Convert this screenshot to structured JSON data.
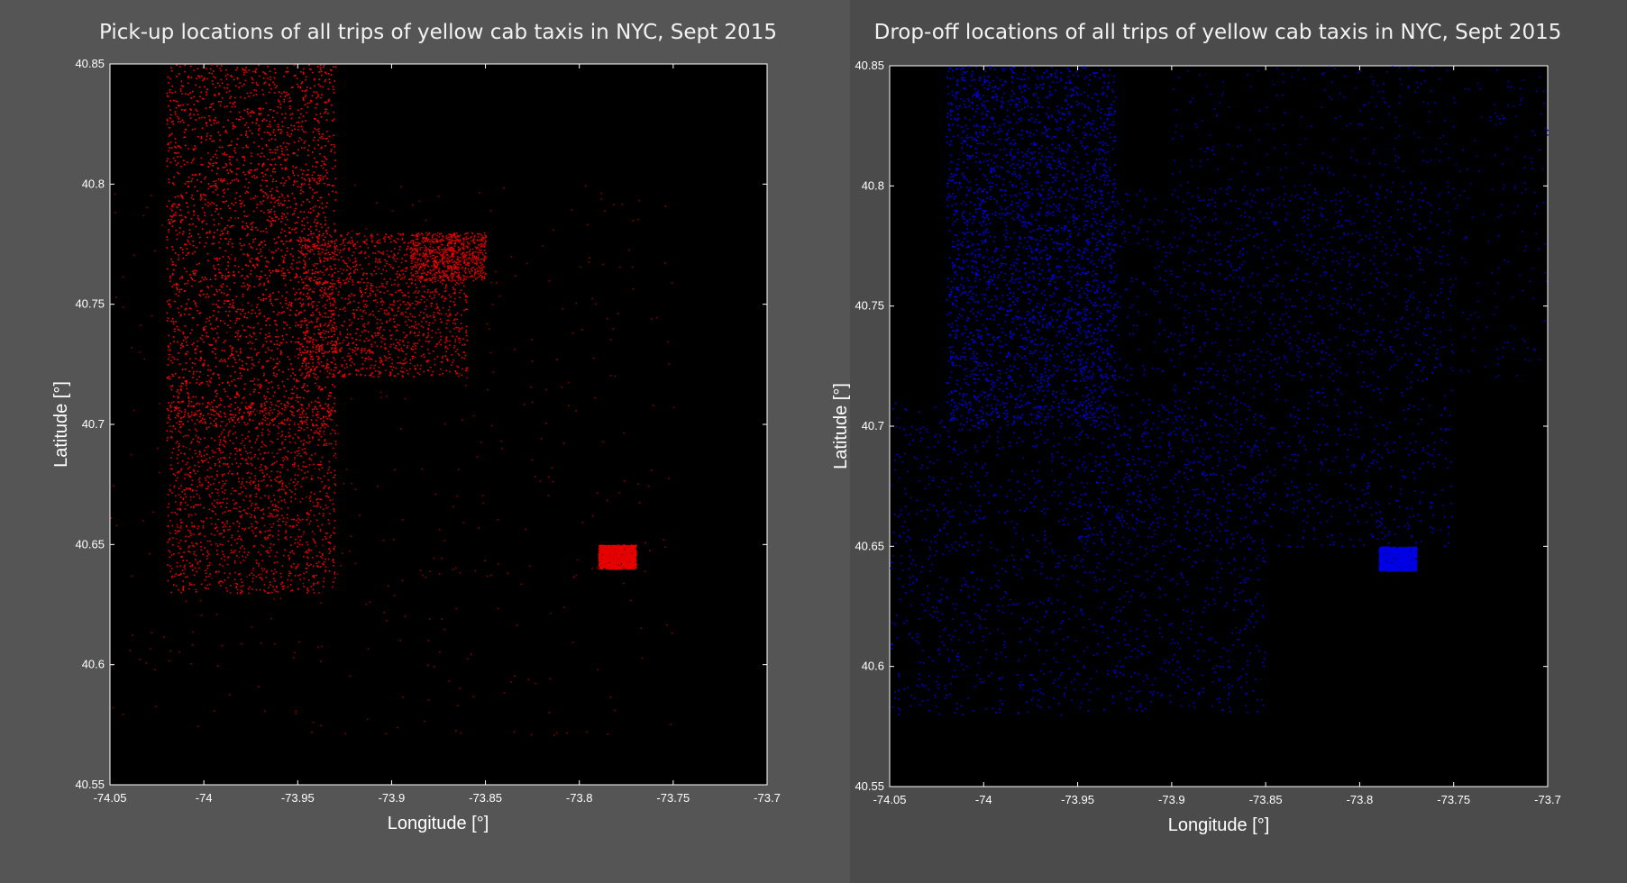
{
  "chart_data": [
    {
      "type": "scatter",
      "title": "Pick-up locations of all trips of yellow cab taxis in NYC, Sept 2015",
      "xlabel": "Longitude [°]",
      "ylabel": "Latitude [°]",
      "xlim": [
        -74.05,
        -73.7
      ],
      "ylim": [
        40.55,
        40.85
      ],
      "xticks": [
        -74.05,
        -74,
        -73.95,
        -73.9,
        -73.85,
        -73.8,
        -73.75,
        -73.7
      ],
      "xtick_labels": [
        "-74.05",
        "-74",
        "-73.95",
        "-73.9",
        "-73.85",
        "-73.8",
        "-73.75",
        "-73.7"
      ],
      "yticks": [
        40.55,
        40.6,
        40.65,
        40.7,
        40.75,
        40.8,
        40.85
      ],
      "ytick_labels": [
        "40.55",
        "40.6",
        "40.65",
        "40.7",
        "40.75",
        "40.8",
        "40.85"
      ],
      "marker_color": "#ff0000",
      "background_color": "#000000",
      "grid": false,
      "density_regions": [
        {
          "lon": [
            -74.02,
            -73.93
          ],
          "lat": [
            40.7,
            40.85
          ],
          "level": "very high"
        },
        {
          "lon": [
            -74.02,
            -73.93
          ],
          "lat": [
            40.63,
            40.71
          ],
          "level": "high"
        },
        {
          "lon": [
            -73.95,
            -73.86
          ],
          "lat": [
            40.72,
            40.78
          ],
          "level": "high"
        },
        {
          "lon": [
            -73.79,
            -73.77
          ],
          "lat": [
            40.64,
            40.65
          ],
          "level": "high"
        },
        {
          "lon": [
            -73.89,
            -73.85
          ],
          "lat": [
            40.76,
            40.78
          ],
          "level": "medium"
        },
        {
          "lon": [
            -74.05,
            -73.75
          ],
          "lat": [
            40.57,
            40.8
          ],
          "level": "low"
        }
      ]
    },
    {
      "type": "scatter",
      "title": "Drop-off locations of all trips of yellow cab taxis in NYC, Sept 2015",
      "xlabel": "Longitude [°]",
      "ylabel": "Latitude [°]",
      "xlim": [
        -74.05,
        -73.7
      ],
      "ylim": [
        40.55,
        40.85
      ],
      "xticks": [
        -74.05,
        -74,
        -73.95,
        -73.9,
        -73.85,
        -73.8,
        -73.75,
        -73.7
      ],
      "xtick_labels": [
        "-74.05",
        "-74",
        "-73.95",
        "-73.9",
        "-73.85",
        "-73.8",
        "-73.75",
        "-73.7"
      ],
      "yticks": [
        40.55,
        40.6,
        40.65,
        40.7,
        40.75,
        40.8,
        40.85
      ],
      "ytick_labels": [
        "40.55",
        "40.6",
        "40.65",
        "40.7",
        "40.75",
        "40.8",
        "40.85"
      ],
      "marker_color": "#0000ff",
      "background_color": "#000000",
      "grid": false,
      "density_regions": [
        {
          "lon": [
            -74.02,
            -73.93
          ],
          "lat": [
            40.7,
            40.85
          ],
          "level": "very high"
        },
        {
          "lon": [
            -74.05,
            -73.85
          ],
          "lat": [
            40.58,
            40.71
          ],
          "level": "high"
        },
        {
          "lon": [
            -73.95,
            -73.75
          ],
          "lat": [
            40.65,
            40.8
          ],
          "level": "high"
        },
        {
          "lon": [
            -73.9,
            -73.7
          ],
          "lat": [
            40.72,
            40.85
          ],
          "level": "medium"
        },
        {
          "lon": [
            -73.79,
            -73.77
          ],
          "lat": [
            40.64,
            40.65
          ],
          "level": "high"
        }
      ]
    }
  ]
}
